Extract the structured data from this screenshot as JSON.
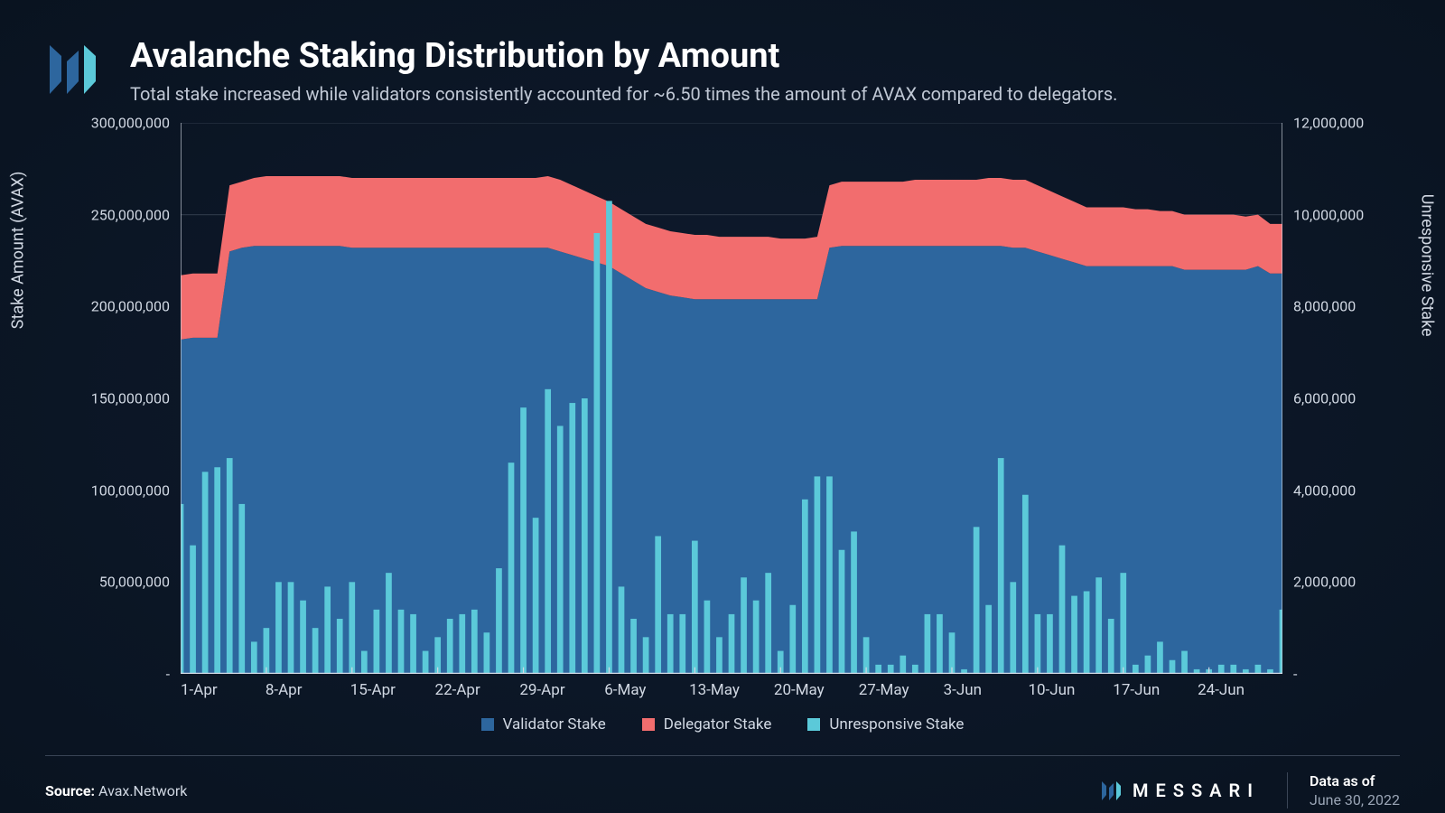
{
  "header": {
    "title": "Avalanche Staking Distribution by Amount",
    "subtitle": "Total stake increased while validators consistently accounted for ~6.50 times the amount of AVAX compared to delegators."
  },
  "chart": {
    "type": "stacked-area-with-bars",
    "background_color": "#0b1626",
    "grid_color": "#2a3545",
    "y_left": {
      "label": "Stake Amount (AVAX)",
      "min": 0,
      "max": 300000000,
      "ticks": [
        "-",
        "50,000,000",
        "100,000,000",
        "150,000,000",
        "200,000,000",
        "250,000,000",
        "300,000,000"
      ]
    },
    "y_right": {
      "label": "Unresponsive Stake",
      "min": 0,
      "max": 12000000,
      "ticks": [
        "-",
        "2,000,000",
        "4,000,000",
        "6,000,000",
        "8,000,000",
        "10,000,000",
        "12,000,000"
      ]
    },
    "x_ticks": [
      "1-Apr",
      "8-Apr",
      "15-Apr",
      "22-Apr",
      "29-Apr",
      "6-May",
      "13-May",
      "20-May",
      "27-May",
      "3-Jun",
      "10-Jun",
      "17-Jun",
      "24-Jun"
    ],
    "series": {
      "validator": {
        "label": "Validator Stake",
        "color": "#2d669e",
        "values": [
          182000000,
          183000000,
          183000000,
          183000000,
          230000000,
          232000000,
          233000000,
          233000000,
          233000000,
          233000000,
          233000000,
          233000000,
          233000000,
          233000000,
          232000000,
          232000000,
          232000000,
          232000000,
          232000000,
          232000000,
          232000000,
          232000000,
          232000000,
          232000000,
          232000000,
          232000000,
          232000000,
          232000000,
          232000000,
          232000000,
          232000000,
          230000000,
          228000000,
          226000000,
          224000000,
          222000000,
          218000000,
          214000000,
          210000000,
          208000000,
          206000000,
          205000000,
          204000000,
          204000000,
          204000000,
          204000000,
          204000000,
          204000000,
          204000000,
          204000000,
          204000000,
          204000000,
          204000000,
          232000000,
          233000000,
          233000000,
          233000000,
          233000000,
          233000000,
          233000000,
          233000000,
          233000000,
          233000000,
          233000000,
          233000000,
          233000000,
          233000000,
          233000000,
          232000000,
          232000000,
          230000000,
          228000000,
          226000000,
          224000000,
          222000000,
          222000000,
          222000000,
          222000000,
          222000000,
          222000000,
          222000000,
          222000000,
          220000000,
          220000000,
          220000000,
          220000000,
          220000000,
          220000000,
          222000000,
          218000000,
          218000000
        ]
      },
      "delegator": {
        "label": "Delegator Stake",
        "color": "#f26d6e",
        "values": [
          35000000,
          35000000,
          35000000,
          35000000,
          36000000,
          36000000,
          37000000,
          38000000,
          38000000,
          38000000,
          38000000,
          38000000,
          38000000,
          38000000,
          38000000,
          38000000,
          38000000,
          38000000,
          38000000,
          38000000,
          38000000,
          38000000,
          38000000,
          38000000,
          38000000,
          38000000,
          38000000,
          38000000,
          38000000,
          38000000,
          39000000,
          39000000,
          38000000,
          37000000,
          36000000,
          35000000,
          35000000,
          35000000,
          35000000,
          35000000,
          35000000,
          35000000,
          35000000,
          35000000,
          34000000,
          34000000,
          34000000,
          34000000,
          34000000,
          33000000,
          33000000,
          33000000,
          34000000,
          34000000,
          35000000,
          35000000,
          35000000,
          35000000,
          35000000,
          35000000,
          36000000,
          36000000,
          36000000,
          36000000,
          36000000,
          36000000,
          37000000,
          37000000,
          37000000,
          37000000,
          36000000,
          35000000,
          34000000,
          33000000,
          32000000,
          32000000,
          32000000,
          32000000,
          31000000,
          31000000,
          30000000,
          30000000,
          30000000,
          30000000,
          30000000,
          30000000,
          30000000,
          29000000,
          28000000,
          27000000,
          27000000
        ]
      },
      "unresponsive": {
        "label": "Unresponsive Stake",
        "color": "#5bc9d9",
        "values": [
          3700000,
          2800000,
          4400000,
          4500000,
          4700000,
          3700000,
          700000,
          1000000,
          2000000,
          2000000,
          1600000,
          1000000,
          1900000,
          1200000,
          2000000,
          500000,
          1400000,
          2200000,
          1400000,
          1300000,
          500000,
          800000,
          1200000,
          1300000,
          1400000,
          900000,
          2300000,
          4600000,
          5800000,
          3400000,
          6200000,
          5400000,
          5900000,
          6000000,
          9600000,
          10300000,
          1900000,
          1200000,
          800000,
          3000000,
          1300000,
          1300000,
          2900000,
          1600000,
          800000,
          1300000,
          2100000,
          1600000,
          2200000,
          500000,
          1500000,
          3800000,
          4300000,
          4300000,
          2700000,
          3100000,
          800000,
          200000,
          200000,
          400000,
          200000,
          1300000,
          1300000,
          900000,
          100000,
          3200000,
          1500000,
          4700000,
          2000000,
          3900000,
          1300000,
          1300000,
          2800000,
          1700000,
          1800000,
          2100000,
          1200000,
          2200000,
          200000,
          400000,
          700000,
          300000,
          500000,
          100000,
          100000,
          200000,
          200000,
          100000,
          200000,
          100000,
          1400000
        ]
      }
    }
  },
  "legend": [
    "Validator Stake",
    "Delegator Stake",
    "Unresponsive Stake"
  ],
  "footer": {
    "source_label": "Source:",
    "source_value": "Avax.Network",
    "brand": "MESSARI",
    "date_label": "Data as of",
    "date_value": "June 30, 2022"
  },
  "colors": {
    "logo_left": "#2d669e",
    "logo_right": "#5bc9d9"
  }
}
